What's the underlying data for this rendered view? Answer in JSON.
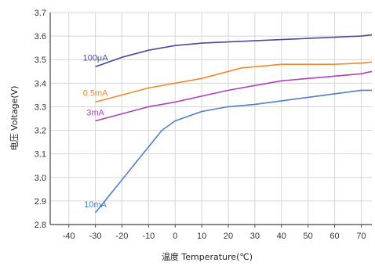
{
  "chart_data": {
    "type": "line",
    "title": "",
    "xlabel": "温度 Temperature(℃)",
    "ylabel": "电压 Voltage(V)",
    "xlim": [
      -47,
      74
    ],
    "ylim": [
      2.8,
      3.7
    ],
    "xticks": [
      -40,
      -30,
      -20,
      -10,
      0,
      10,
      20,
      30,
      40,
      50,
      60,
      70
    ],
    "yticks": [
      2.8,
      2.9,
      3.0,
      3.1,
      3.2,
      3.3,
      3.4,
      3.5,
      3.6,
      3.7
    ],
    "grid": true,
    "legend": "inline-left",
    "series": [
      {
        "name": "100μA",
        "color": "#4a4a9a",
        "x": [
          -30,
          -25,
          -20,
          -10,
          0,
          10,
          20,
          30,
          40,
          50,
          60,
          70,
          74
        ],
        "y": [
          3.47,
          3.49,
          3.51,
          3.54,
          3.56,
          3.57,
          3.575,
          3.58,
          3.585,
          3.59,
          3.595,
          3.6,
          3.605
        ]
      },
      {
        "name": "0.5mA",
        "color": "#f08a2a",
        "x": [
          -30,
          -20,
          -10,
          0,
          10,
          20,
          25,
          30,
          40,
          50,
          60,
          70,
          74
        ],
        "y": [
          3.32,
          3.35,
          3.38,
          3.4,
          3.42,
          3.45,
          3.465,
          3.47,
          3.48,
          3.48,
          3.48,
          3.485,
          3.49
        ]
      },
      {
        "name": "3mA",
        "color": "#b040b8",
        "x": [
          -30,
          -20,
          -10,
          0,
          10,
          20,
          30,
          40,
          50,
          60,
          70,
          74
        ],
        "y": [
          3.24,
          3.27,
          3.3,
          3.32,
          3.345,
          3.37,
          3.39,
          3.41,
          3.42,
          3.43,
          3.44,
          3.45
        ]
      },
      {
        "name": "10mA",
        "color": "#4f7fc8",
        "x": [
          -30,
          -25,
          -20,
          -15,
          -10,
          -5,
          0,
          10,
          20,
          30,
          40,
          50,
          60,
          70,
          74
        ],
        "y": [
          2.85,
          2.92,
          2.99,
          3.06,
          3.13,
          3.2,
          3.24,
          3.28,
          3.3,
          3.31,
          3.325,
          3.34,
          3.355,
          3.37,
          3.37
        ]
      }
    ]
  }
}
